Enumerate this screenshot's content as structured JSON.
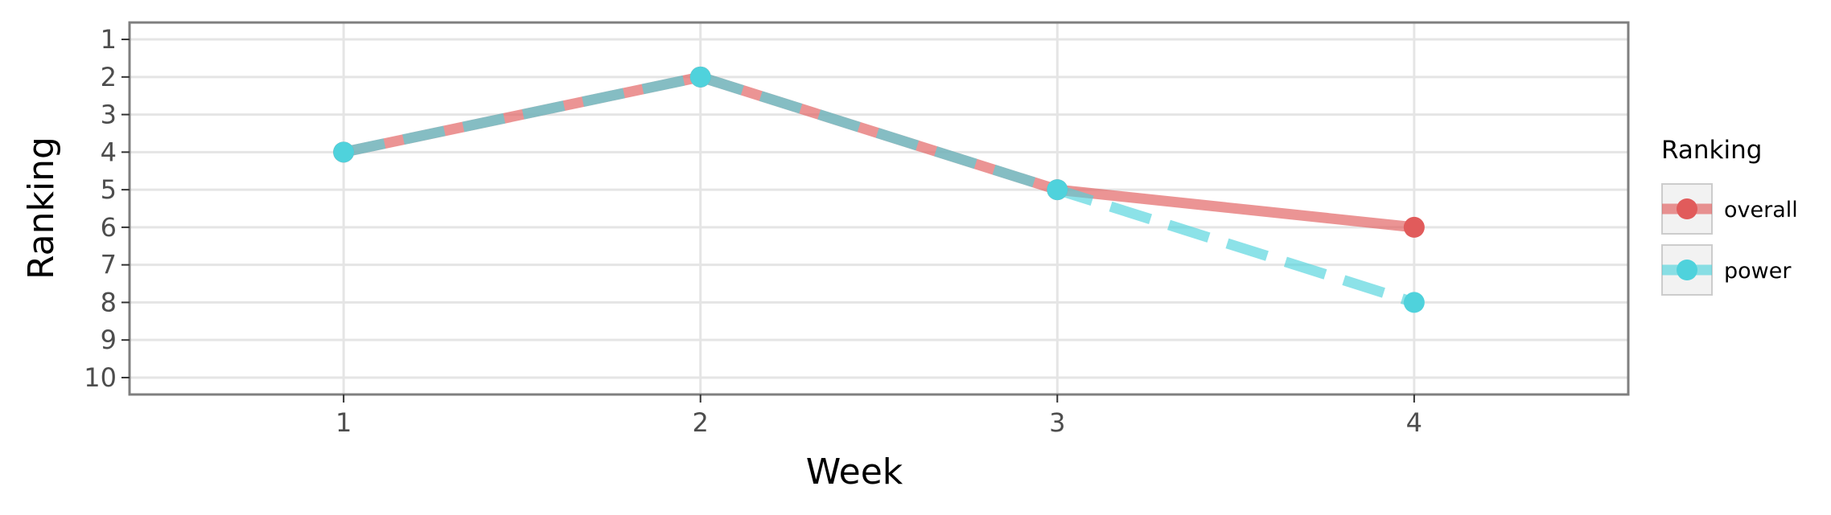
{
  "chart_data": {
    "type": "line",
    "title": "",
    "xlabel": "Week",
    "ylabel": "Ranking",
    "x": [
      1,
      2,
      3,
      4
    ],
    "xticks": [
      "1",
      "2",
      "3",
      "4"
    ],
    "yticks": [
      "1",
      "2",
      "3",
      "4",
      "5",
      "6",
      "7",
      "8",
      "9",
      "10"
    ],
    "xlim": [
      0.4,
      4.6
    ],
    "ylim": [
      10.45,
      0.55
    ],
    "y_reversed": true,
    "grid": true,
    "legend": {
      "title": "Ranking",
      "position": "right"
    },
    "series": [
      {
        "name": "overall",
        "values": [
          4,
          2,
          5,
          6
        ],
        "color": "#E15B5B",
        "line": "solid"
      },
      {
        "name": "power",
        "values": [
          4,
          2,
          5,
          8
        ],
        "color": "#4FD2DC",
        "line": "dashed"
      }
    ]
  }
}
